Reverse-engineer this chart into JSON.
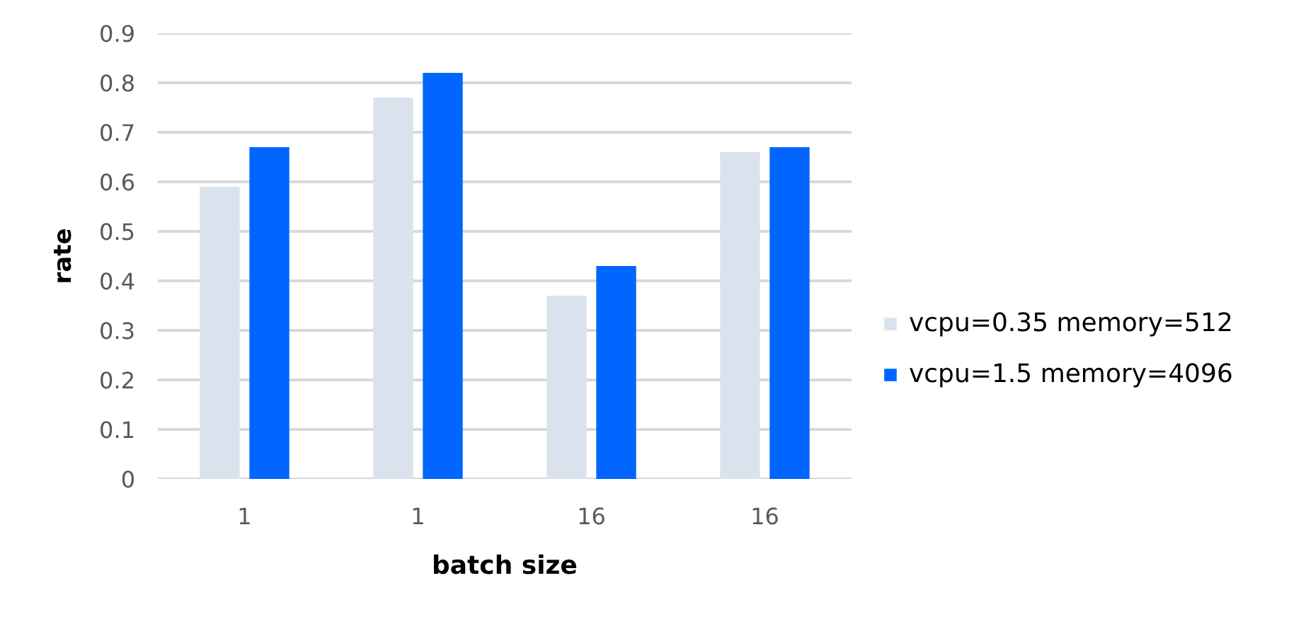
{
  "chart_data": {
    "type": "bar",
    "xlabel": "batch size",
    "ylabel": "rate",
    "categories": [
      "1",
      "1",
      "16",
      "16"
    ],
    "series": [
      {
        "name": "vcpu=0.35 memory=512",
        "color": "#dae3ed",
        "values": [
          0.59,
          0.77,
          0.37,
          0.66
        ]
      },
      {
        "name": "vcpu=1.5 memory=4096",
        "color": "#0066ff",
        "values": [
          0.67,
          0.82,
          0.43,
          0.67
        ]
      }
    ],
    "ylim": [
      0,
      0.9
    ],
    "yticks": [
      0,
      0.1,
      0.2,
      0.3,
      0.4,
      0.5,
      0.6,
      0.7,
      0.8,
      0.9
    ],
    "grid": "y",
    "legend": "right"
  }
}
